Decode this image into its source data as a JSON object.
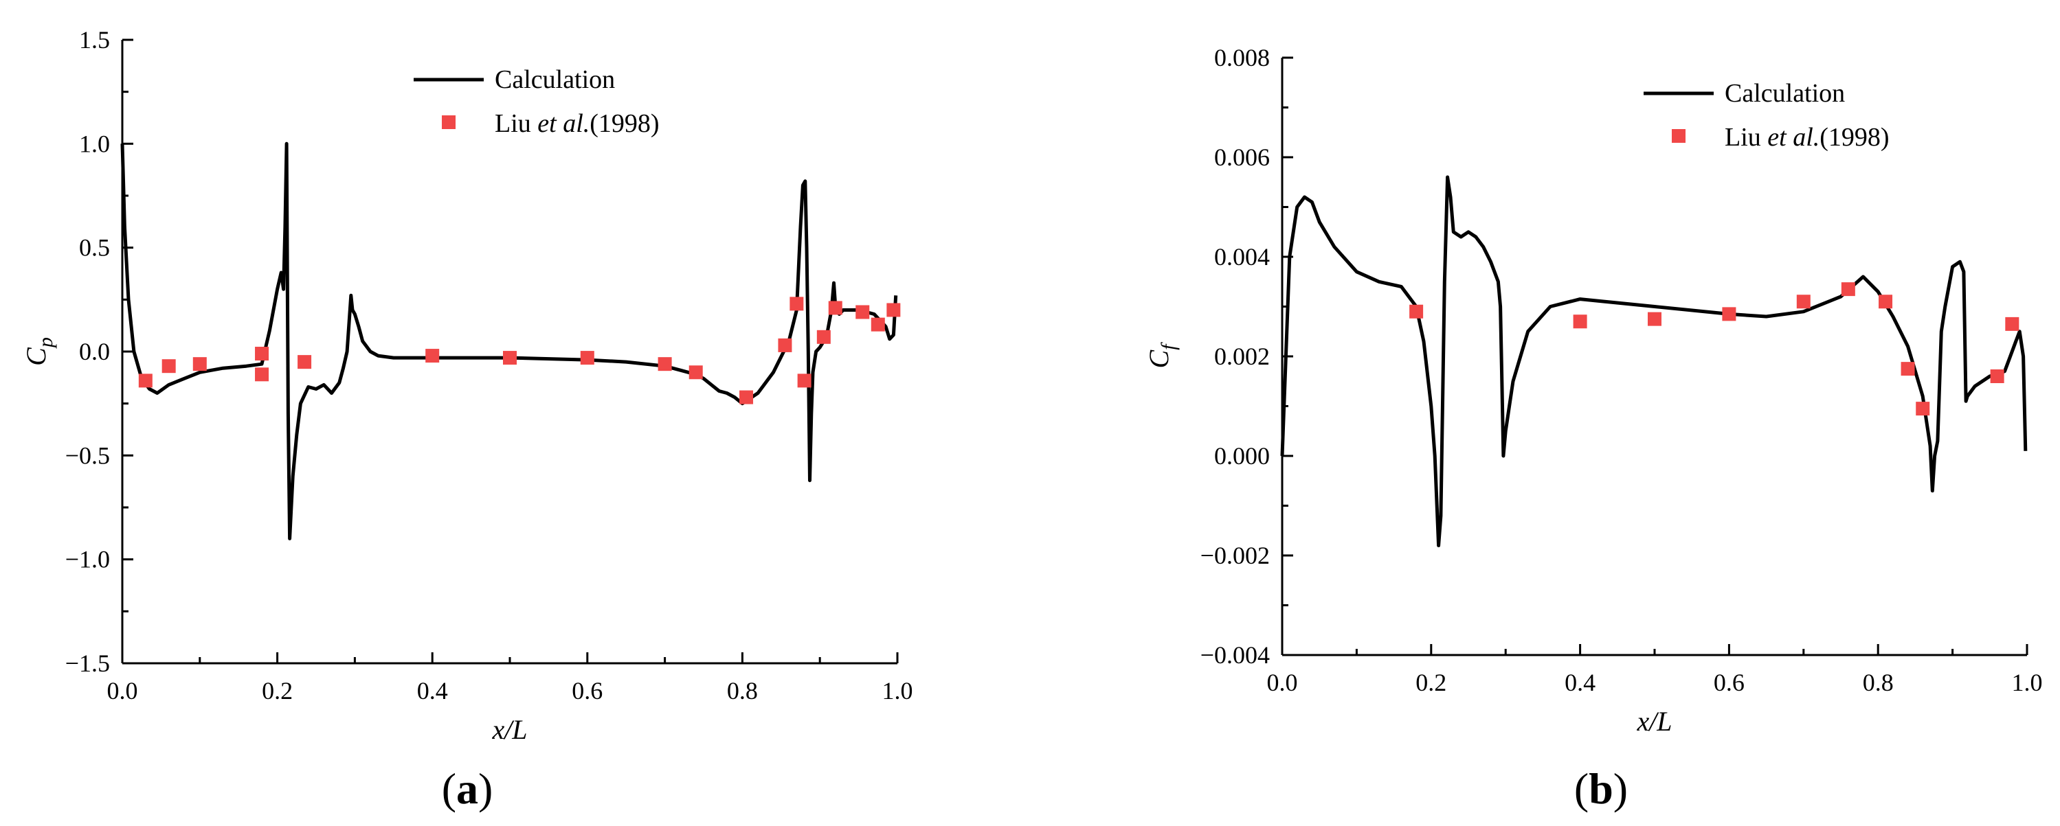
{
  "figure": {
    "panels": [
      {
        "id": "a",
        "label": "a",
        "ylabel_main": "C",
        "ylabel_sub": "p",
        "xlabel": "x/L",
        "legend": {
          "line_label": "Calculation",
          "marker_prefix": "Liu ",
          "marker_italic": "et al.",
          "marker_suffix": "(1998)"
        }
      },
      {
        "id": "b",
        "label": "b",
        "ylabel_main": "C",
        "ylabel_sub": "f",
        "xlabel": "x/L",
        "legend": {
          "line_label": "Calculation",
          "marker_prefix": "Liu ",
          "marker_italic": "et al.",
          "marker_suffix": "(1998)"
        }
      }
    ]
  },
  "chart_data": [
    {
      "type": "line",
      "xlim": [
        0,
        1.0
      ],
      "ylim": [
        -1.5,
        1.5
      ],
      "xticks": [
        "0.0",
        "0.2",
        "0.4",
        "0.6",
        "0.8",
        "1.0"
      ],
      "xtick_values": [
        0,
        0.2,
        0.4,
        0.6,
        0.8,
        1.0
      ],
      "yticks": [
        "−1.5",
        "−1.0",
        "−0.5",
        "0.0",
        "0.5",
        "1.0",
        "1.5"
      ],
      "ytick_values": [
        -1.5,
        -1.0,
        -0.5,
        0,
        0.5,
        1.0,
        1.5
      ],
      "grid": false,
      "legend_position": "top-right",
      "line_color": "#000000",
      "marker_color": "#f04747",
      "series": [
        {
          "name": "Calculation",
          "kind": "line",
          "x": [
            0.0,
            0.003,
            0.008,
            0.015,
            0.025,
            0.035,
            0.045,
            0.06,
            0.08,
            0.1,
            0.13,
            0.16,
            0.18,
            0.19,
            0.2,
            0.205,
            0.208,
            0.21,
            0.212,
            0.214,
            0.216,
            0.22,
            0.225,
            0.23,
            0.24,
            0.25,
            0.26,
            0.27,
            0.28,
            0.285,
            0.29,
            0.295,
            0.297,
            0.3,
            0.305,
            0.31,
            0.32,
            0.33,
            0.35,
            0.4,
            0.5,
            0.6,
            0.65,
            0.7,
            0.72,
            0.74,
            0.75,
            0.76,
            0.77,
            0.78,
            0.79,
            0.8,
            0.82,
            0.84,
            0.86,
            0.87,
            0.875,
            0.878,
            0.881,
            0.883,
            0.885,
            0.887,
            0.889,
            0.891,
            0.895,
            0.9,
            0.905,
            0.91,
            0.915,
            0.918,
            0.92,
            0.922,
            0.925,
            0.93,
            0.95,
            0.97,
            0.985,
            0.99,
            0.995,
            0.998
          ],
          "y": [
            1.0,
            0.6,
            0.25,
            0.0,
            -0.13,
            -0.18,
            -0.2,
            -0.16,
            -0.13,
            -0.1,
            -0.08,
            -0.07,
            -0.06,
            0.1,
            0.3,
            0.38,
            0.3,
            0.6,
            1.0,
            -0.3,
            -0.9,
            -0.6,
            -0.4,
            -0.25,
            -0.17,
            -0.18,
            -0.16,
            -0.2,
            -0.15,
            -0.08,
            0.0,
            0.27,
            0.2,
            0.18,
            0.12,
            0.05,
            0.0,
            -0.02,
            -0.03,
            -0.03,
            -0.03,
            -0.04,
            -0.05,
            -0.07,
            -0.09,
            -0.11,
            -0.13,
            -0.16,
            -0.19,
            -0.2,
            -0.22,
            -0.25,
            -0.2,
            -0.1,
            0.05,
            0.2,
            0.6,
            0.8,
            0.82,
            0.5,
            0.0,
            -0.62,
            -0.3,
            -0.1,
            0.0,
            0.02,
            0.05,
            0.1,
            0.2,
            0.33,
            0.22,
            0.2,
            0.18,
            0.2,
            0.2,
            0.18,
            0.12,
            0.06,
            0.08,
            0.27
          ]
        },
        {
          "name": "Liu et al.(1998)",
          "kind": "markers",
          "x": [
            0.03,
            0.06,
            0.1,
            0.18,
            0.18,
            0.235,
            0.4,
            0.5,
            0.6,
            0.7,
            0.74,
            0.805,
            0.855,
            0.87,
            0.88,
            0.905,
            0.92,
            0.955,
            0.975,
            0.995
          ],
          "y": [
            -0.14,
            -0.07,
            -0.06,
            -0.01,
            -0.11,
            -0.05,
            -0.02,
            -0.03,
            -0.03,
            -0.06,
            -0.1,
            -0.22,
            0.03,
            0.23,
            -0.14,
            0.07,
            0.21,
            0.19,
            0.13,
            0.2
          ]
        }
      ]
    },
    {
      "type": "line",
      "xlim": [
        0,
        1.0
      ],
      "ylim": [
        -0.004,
        0.008
      ],
      "xticks": [
        "0.0",
        "0.2",
        "0.4",
        "0.6",
        "0.8",
        "1.0"
      ],
      "xtick_values": [
        0,
        0.2,
        0.4,
        0.6,
        0.8,
        1.0
      ],
      "yticks": [
        "−0.004",
        "−0.002",
        "0.000",
        "0.002",
        "0.004",
        "0.006",
        "0.008"
      ],
      "ytick_values": [
        -0.004,
        -0.002,
        0,
        0.002,
        0.004,
        0.006,
        0.008
      ],
      "grid": false,
      "legend_position": "top-right",
      "line_color": "#000000",
      "marker_color": "#f04747",
      "series": [
        {
          "name": "Calculation",
          "kind": "line",
          "x": [
            0.0,
            0.005,
            0.01,
            0.02,
            0.03,
            0.04,
            0.05,
            0.07,
            0.1,
            0.13,
            0.16,
            0.18,
            0.19,
            0.2,
            0.205,
            0.21,
            0.213,
            0.218,
            0.222,
            0.226,
            0.23,
            0.24,
            0.25,
            0.26,
            0.27,
            0.28,
            0.29,
            0.293,
            0.295,
            0.297,
            0.3,
            0.31,
            0.33,
            0.36,
            0.4,
            0.5,
            0.6,
            0.65,
            0.7,
            0.75,
            0.78,
            0.8,
            0.82,
            0.84,
            0.86,
            0.87,
            0.873,
            0.876,
            0.88,
            0.885,
            0.89,
            0.9,
            0.91,
            0.915,
            0.918,
            0.92,
            0.93,
            0.95,
            0.97,
            0.985,
            0.99,
            0.995,
            0.998
          ],
          "y": [
            0.0,
            0.002,
            0.004,
            0.005,
            0.0052,
            0.0051,
            0.0047,
            0.0042,
            0.0037,
            0.0035,
            0.0034,
            0.003,
            0.0023,
            0.001,
            0.0,
            -0.0018,
            -0.0012,
            0.0035,
            0.0056,
            0.0052,
            0.0045,
            0.0044,
            0.0045,
            0.0044,
            0.0042,
            0.0039,
            0.0035,
            0.003,
            0.0015,
            0.0,
            0.0005,
            0.0015,
            0.0025,
            0.003,
            0.00315,
            0.003,
            0.00285,
            0.0028,
            0.0029,
            0.0032,
            0.0036,
            0.0033,
            0.0028,
            0.0022,
            0.0012,
            0.0002,
            -0.0007,
            0.0,
            0.0003,
            0.0025,
            0.003,
            0.0038,
            0.0039,
            0.0037,
            0.0011,
            0.0012,
            0.0014,
            0.0016,
            0.0017,
            0.0023,
            0.0025,
            0.002,
            0.0001
          ]
        },
        {
          "name": "Liu et al.(1998)",
          "kind": "markers",
          "x": [
            0.18,
            0.4,
            0.5,
            0.6,
            0.7,
            0.76,
            0.81,
            0.84,
            0.86,
            0.96,
            0.98
          ],
          "y": [
            0.0029,
            0.0027,
            0.00275,
            0.00285,
            0.0031,
            0.00335,
            0.0031,
            0.00175,
            0.00095,
            0.0016,
            0.00265
          ]
        }
      ]
    }
  ]
}
